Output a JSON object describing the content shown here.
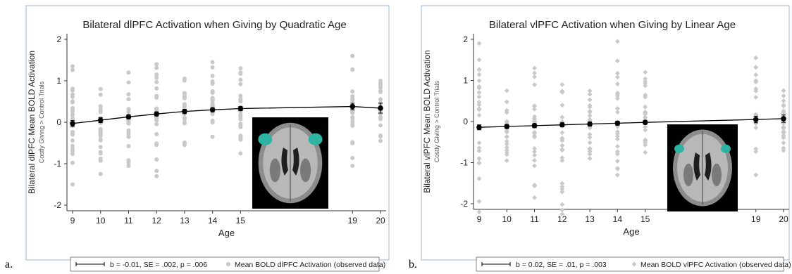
{
  "panels": [
    {
      "letter": "a.",
      "legend_fit": "b = -0.01, SE = .002, p = .006",
      "legend_obs": "Mean BOLD dlPFC Activation (observed data)"
    },
    {
      "letter": "b.",
      "legend_fit": "b = 0.02, SE = .01, p = .003",
      "legend_obs": "Mean BOLD vlPFC Activation (observed data)"
    }
  ],
  "chart_data": [
    {
      "type": "scatter",
      "title": "Bilateral dlPFC Activation when Giving by Quadratic Age",
      "xlabel": "Age",
      "ylabel": "Bilateral dlPFC Mean BOLD Activation",
      "ylabel_sub": "Costly Giving > Control Trials",
      "xlim": [
        9,
        20
      ],
      "ylim": [
        -2,
        2
      ],
      "x_ticks": [
        9,
        10,
        11,
        12,
        13,
        14,
        15,
        19,
        20
      ],
      "y_ticks": [
        -2,
        -1,
        0,
        1,
        2
      ],
      "fit": {
        "x": [
          9,
          10,
          11,
          12,
          13,
          14,
          15,
          19,
          20
        ],
        "y": [
          -0.03,
          0.05,
          0.13,
          0.2,
          0.26,
          0.3,
          0.33,
          0.38,
          0.34
        ],
        "err": [
          0.07,
          0.06,
          0.05,
          0.05,
          0.05,
          0.05,
          0.05,
          0.08,
          0.12
        ]
      },
      "scatter_ranges": [
        {
          "x": 9,
          "min": -1.5,
          "max": 1.35
        },
        {
          "x": 10,
          "min": -1.25,
          "max": 0.8
        },
        {
          "x": 11,
          "min": -1.05,
          "max": 1.2
        },
        {
          "x": 12,
          "min": -1.3,
          "max": 1.4
        },
        {
          "x": 13,
          "min": -0.55,
          "max": 1.05
        },
        {
          "x": 14,
          "min": -0.35,
          "max": 1.45
        },
        {
          "x": 15,
          "min": -0.75,
          "max": 1.3
        },
        {
          "x": 19,
          "min": -1.05,
          "max": 1.6
        },
        {
          "x": 20,
          "min": -0.45,
          "max": 1.0
        }
      ],
      "marker": "circle",
      "brain_highlight": "#2db3a2"
    },
    {
      "type": "scatter",
      "title": "Bilateral vlPFC Activation when Giving by Linear Age",
      "xlabel": "Age",
      "ylabel": "Bilateral vlPFC Mean BOLD Activation",
      "ylabel_sub": "Costly Giving > Control Trials",
      "xlim": [
        9,
        20
      ],
      "ylim": [
        -2,
        2
      ],
      "x_ticks": [
        9,
        10,
        11,
        12,
        13,
        14,
        15,
        19,
        20
      ],
      "y_ticks": [
        -2,
        -1,
        0,
        1,
        2
      ],
      "fit": {
        "x": [
          9,
          10,
          11,
          12,
          13,
          14,
          15,
          19,
          20
        ],
        "y": [
          -0.14,
          -0.12,
          -0.1,
          -0.08,
          -0.06,
          -0.04,
          -0.02,
          0.05,
          0.07
        ],
        "err": [
          0.06,
          0.05,
          0.05,
          0.05,
          0.05,
          0.05,
          0.05,
          0.08,
          0.09
        ]
      },
      "scatter_ranges": [
        {
          "x": 9,
          "min": -2.2,
          "max": 1.9
        },
        {
          "x": 10,
          "min": -0.95,
          "max": 0.75
        },
        {
          "x": 11,
          "min": -1.85,
          "max": 1.3
        },
        {
          "x": 12,
          "min": -2.25,
          "max": 0.9
        },
        {
          "x": 13,
          "min": -0.9,
          "max": 0.75
        },
        {
          "x": 14,
          "min": -1.3,
          "max": 1.95
        },
        {
          "x": 15,
          "min": -0.75,
          "max": 1.2
        },
        {
          "x": 19,
          "min": -1.3,
          "max": 1.55
        },
        {
          "x": 20,
          "min": -0.7,
          "max": 0.75
        }
      ],
      "marker": "diamond",
      "brain_highlight": "#2db3a2"
    }
  ]
}
